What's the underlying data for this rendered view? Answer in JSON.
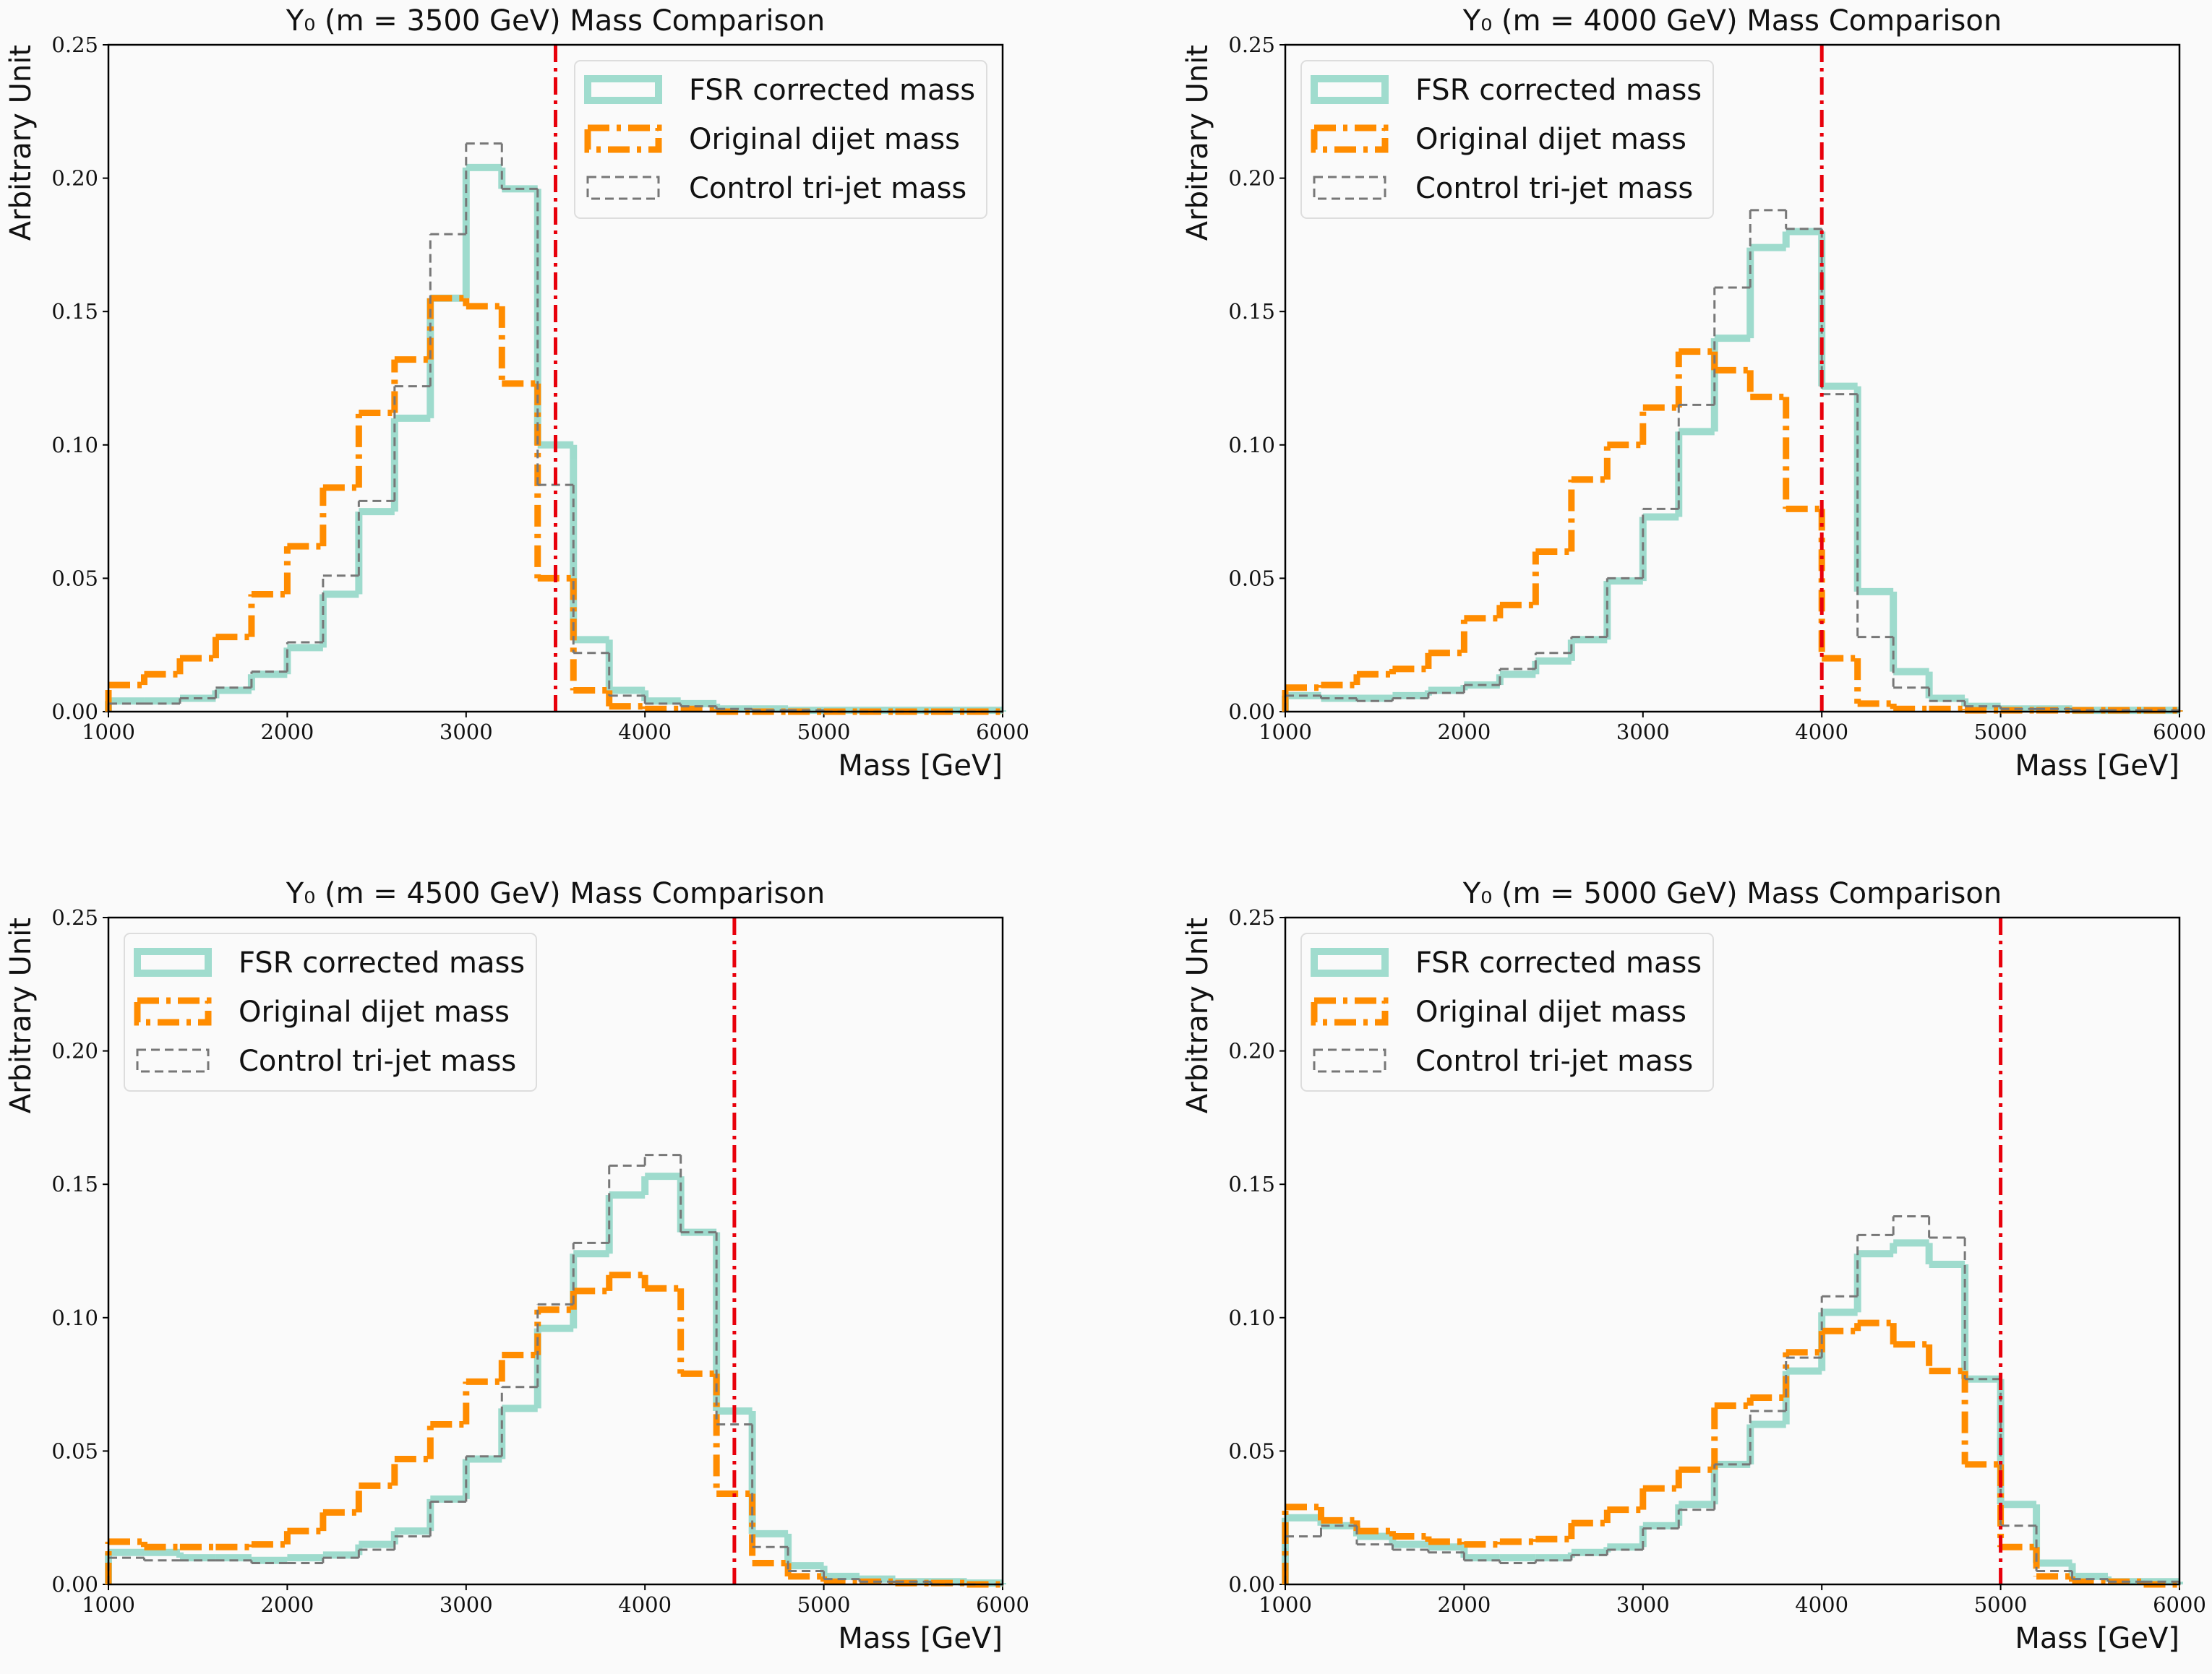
{
  "chart_data": [
    {
      "type": "histogram",
      "title": "Y₀ (m = 3500 GeV) Mass Comparison",
      "xlabel": "Mass [GeV]",
      "ylabel": "Arbitrary Unit",
      "bins": [
        1000,
        1200,
        1400,
        1600,
        1800,
        2000,
        2200,
        2400,
        2600,
        2800,
        3000,
        3200,
        3400,
        3600,
        3800,
        4000,
        4200,
        4400,
        4600,
        4800,
        5000,
        5200,
        5400,
        5600,
        5800,
        6000
      ],
      "series": [
        {
          "name": "FSR corrected mass",
          "color": "#8fd6c6",
          "linestyle": "solid",
          "values": [
            0.004,
            0.004,
            0.005,
            0.008,
            0.014,
            0.024,
            0.044,
            0.075,
            0.11,
            0.155,
            0.204,
            0.196,
            0.1,
            0.027,
            0.008,
            0.004,
            0.003,
            0.001,
            0.001,
            0.0005,
            0.0005,
            0.0005,
            0.0005,
            0.0005,
            0.0005
          ]
        },
        {
          "name": "Original dijet mass",
          "color": "#ff8c00",
          "linestyle": "dashdot",
          "values": [
            0.01,
            0.014,
            0.02,
            0.028,
            0.044,
            0.062,
            0.084,
            0.112,
            0.132,
            0.155,
            0.152,
            0.123,
            0.05,
            0.008,
            0.002,
            0.001,
            0.001,
            0,
            0,
            0,
            0,
            0,
            0,
            0,
            0
          ]
        },
        {
          "name": "Control tri-jet mass",
          "color": "#777777",
          "linestyle": "dashed",
          "values": [
            0.003,
            0.003,
            0.005,
            0.009,
            0.015,
            0.026,
            0.051,
            0.079,
            0.122,
            0.179,
            0.213,
            0.196,
            0.085,
            0.022,
            0.006,
            0.003,
            0.002,
            0.001,
            0.0005,
            0.0005,
            0,
            0,
            0,
            0,
            0
          ]
        }
      ],
      "vline": 3500,
      "vline_color": "#e8000b",
      "xlim": [
        1000,
        6000
      ],
      "ylim": [
        0,
        0.25
      ],
      "xticks": [
        1000,
        2000,
        3000,
        4000,
        5000,
        6000
      ],
      "yticks": [
        {
          "value": 0,
          "label": "0.00"
        },
        {
          "value": 0.05,
          "label": "0.05"
        },
        {
          "value": 0.1,
          "label": "0.10"
        },
        {
          "value": 0.15,
          "label": "0.15"
        },
        {
          "value": 0.2,
          "label": "0.20"
        },
        {
          "value": 0.25,
          "label": "0.25"
        }
      ],
      "legend": "upper right"
    },
    {
      "type": "histogram",
      "title": "Y₀ (m = 4000 GeV) Mass Comparison",
      "xlabel": "Mass [GeV]",
      "ylabel": "Arbitrary Unit",
      "bins": [
        1000,
        1200,
        1400,
        1600,
        1800,
        2000,
        2200,
        2400,
        2600,
        2800,
        3000,
        3200,
        3400,
        3600,
        3800,
        4000,
        4200,
        4400,
        4600,
        4800,
        5000,
        5200,
        5400,
        5600,
        5800,
        6000
      ],
      "series": [
        {
          "name": "FSR corrected mass",
          "color": "#8fd6c6",
          "linestyle": "solid",
          "values": [
            0.006,
            0.005,
            0.005,
            0.006,
            0.008,
            0.01,
            0.014,
            0.019,
            0.027,
            0.049,
            0.073,
            0.105,
            0.14,
            0.174,
            0.18,
            0.122,
            0.045,
            0.015,
            0.005,
            0.002,
            0.001,
            0.001,
            0.0005,
            0.0005,
            0.0005
          ]
        },
        {
          "name": "Original dijet mass",
          "color": "#ff8c00",
          "linestyle": "dashdot",
          "values": [
            0.009,
            0.01,
            0.014,
            0.016,
            0.022,
            0.035,
            0.04,
            0.06,
            0.087,
            0.1,
            0.114,
            0.135,
            0.128,
            0.118,
            0.076,
            0.02,
            0.003,
            0.001,
            0.001,
            0.0005,
            0.0005,
            0.0005,
            0.0005,
            0.0005,
            0.0005
          ]
        },
        {
          "name": "Control tri-jet mass",
          "color": "#777777",
          "linestyle": "dashed",
          "values": [
            0.006,
            0.005,
            0.004,
            0.005,
            0.007,
            0.01,
            0.016,
            0.022,
            0.028,
            0.05,
            0.076,
            0.115,
            0.159,
            0.188,
            0.181,
            0.119,
            0.028,
            0.009,
            0.004,
            0.002,
            0.001,
            0.001,
            0.0005,
            0.0005,
            0.0005
          ]
        }
      ],
      "vline": 4000,
      "vline_color": "#e8000b",
      "xlim": [
        1000,
        6000
      ],
      "ylim": [
        0,
        0.25
      ],
      "xticks": [
        1000,
        2000,
        3000,
        4000,
        5000,
        6000
      ],
      "yticks": [
        {
          "value": 0,
          "label": "0.00"
        },
        {
          "value": 0.05,
          "label": "0.05"
        },
        {
          "value": 0.1,
          "label": "0.10"
        },
        {
          "value": 0.15,
          "label": "0.15"
        },
        {
          "value": 0.2,
          "label": "0.20"
        },
        {
          "value": 0.25,
          "label": "0.25"
        }
      ],
      "legend": "upper left"
    },
    {
      "type": "histogram",
      "title": "Y₀ (m = 4500 GeV) Mass Comparison",
      "xlabel": "Mass [GeV]",
      "ylabel": "Arbitrary Unit",
      "bins": [
        1000,
        1200,
        1400,
        1600,
        1800,
        2000,
        2200,
        2400,
        2600,
        2800,
        3000,
        3200,
        3400,
        3600,
        3800,
        4000,
        4200,
        4400,
        4600,
        4800,
        5000,
        5200,
        5400,
        5600,
        5800,
        6000
      ],
      "series": [
        {
          "name": "FSR corrected mass",
          "color": "#8fd6c6",
          "linestyle": "solid",
          "values": [
            0.012,
            0.012,
            0.01,
            0.01,
            0.009,
            0.01,
            0.011,
            0.015,
            0.02,
            0.032,
            0.047,
            0.066,
            0.096,
            0.124,
            0.146,
            0.153,
            0.132,
            0.065,
            0.019,
            0.007,
            0.003,
            0.002,
            0.001,
            0.001,
            0.0005
          ]
        },
        {
          "name": "Original dijet mass",
          "color": "#ff8c00",
          "linestyle": "dashdot",
          "values": [
            0.016,
            0.014,
            0.014,
            0.014,
            0.015,
            0.02,
            0.027,
            0.037,
            0.047,
            0.06,
            0.076,
            0.086,
            0.103,
            0.11,
            0.116,
            0.111,
            0.079,
            0.034,
            0.008,
            0.003,
            0.001,
            0.001,
            0.0005,
            0.0005,
            0
          ]
        },
        {
          "name": "Control tri-jet mass",
          "color": "#777777",
          "linestyle": "dashed",
          "values": [
            0.01,
            0.009,
            0.009,
            0.009,
            0.008,
            0.008,
            0.01,
            0.013,
            0.018,
            0.031,
            0.048,
            0.074,
            0.105,
            0.128,
            0.157,
            0.161,
            0.132,
            0.06,
            0.014,
            0.005,
            0.002,
            0.001,
            0.001,
            0,
            0
          ]
        }
      ],
      "vline": 4500,
      "vline_color": "#e8000b",
      "xlim": [
        1000,
        6000
      ],
      "ylim": [
        0,
        0.25
      ],
      "xticks": [
        1000,
        2000,
        3000,
        4000,
        5000,
        6000
      ],
      "yticks": [
        {
          "value": 0,
          "label": "0.00"
        },
        {
          "value": 0.05,
          "label": "0.05"
        },
        {
          "value": 0.1,
          "label": "0.10"
        },
        {
          "value": 0.15,
          "label": "0.15"
        },
        {
          "value": 0.2,
          "label": "0.20"
        },
        {
          "value": 0.25,
          "label": "0.25"
        }
      ],
      "legend": "upper left"
    },
    {
      "type": "histogram",
      "title": "Y₀ (m = 5000 GeV) Mass Comparison",
      "xlabel": "Mass [GeV]",
      "ylabel": "Arbitrary Unit",
      "bins": [
        1000,
        1200,
        1400,
        1600,
        1800,
        2000,
        2200,
        2400,
        2600,
        2800,
        3000,
        3200,
        3400,
        3600,
        3800,
        4000,
        4200,
        4400,
        4600,
        4800,
        5000,
        5200,
        5400,
        5600,
        5800,
        6000
      ],
      "series": [
        {
          "name": "FSR corrected mass",
          "color": "#8fd6c6",
          "linestyle": "solid",
          "values": [
            0.025,
            0.022,
            0.018,
            0.015,
            0.014,
            0.01,
            0.01,
            0.01,
            0.012,
            0.014,
            0.022,
            0.03,
            0.045,
            0.06,
            0.08,
            0.102,
            0.124,
            0.128,
            0.12,
            0.077,
            0.03,
            0.008,
            0.003,
            0.001,
            0.001
          ]
        },
        {
          "name": "Original dijet mass",
          "color": "#ff8c00",
          "linestyle": "dashdot",
          "values": [
            0.029,
            0.024,
            0.02,
            0.018,
            0.016,
            0.015,
            0.016,
            0.017,
            0.023,
            0.028,
            0.036,
            0.043,
            0.067,
            0.07,
            0.087,
            0.095,
            0.098,
            0.09,
            0.08,
            0.045,
            0.014,
            0.003,
            0.001,
            0.001,
            0
          ]
        },
        {
          "name": "Control tri-jet mass",
          "color": "#777777",
          "linestyle": "dashed",
          "values": [
            0.018,
            0.022,
            0.015,
            0.013,
            0.012,
            0.009,
            0.008,
            0.009,
            0.011,
            0.013,
            0.021,
            0.028,
            0.045,
            0.065,
            0.085,
            0.108,
            0.131,
            0.138,
            0.13,
            0.077,
            0.022,
            0.005,
            0.002,
            0.001,
            0.001
          ]
        }
      ],
      "vline": 5000,
      "vline_color": "#e8000b",
      "xlim": [
        1000,
        6000
      ],
      "ylim": [
        0,
        0.25
      ],
      "xticks": [
        1000,
        2000,
        3000,
        4000,
        5000,
        6000
      ],
      "yticks": [
        {
          "value": 0,
          "label": "0.00"
        },
        {
          "value": 0.05,
          "label": "0.05"
        },
        {
          "value": 0.1,
          "label": "0.10"
        },
        {
          "value": 0.15,
          "label": "0.15"
        },
        {
          "value": 0.2,
          "label": "0.20"
        },
        {
          "value": 0.25,
          "label": "0.25"
        }
      ],
      "legend": "upper left"
    }
  ]
}
